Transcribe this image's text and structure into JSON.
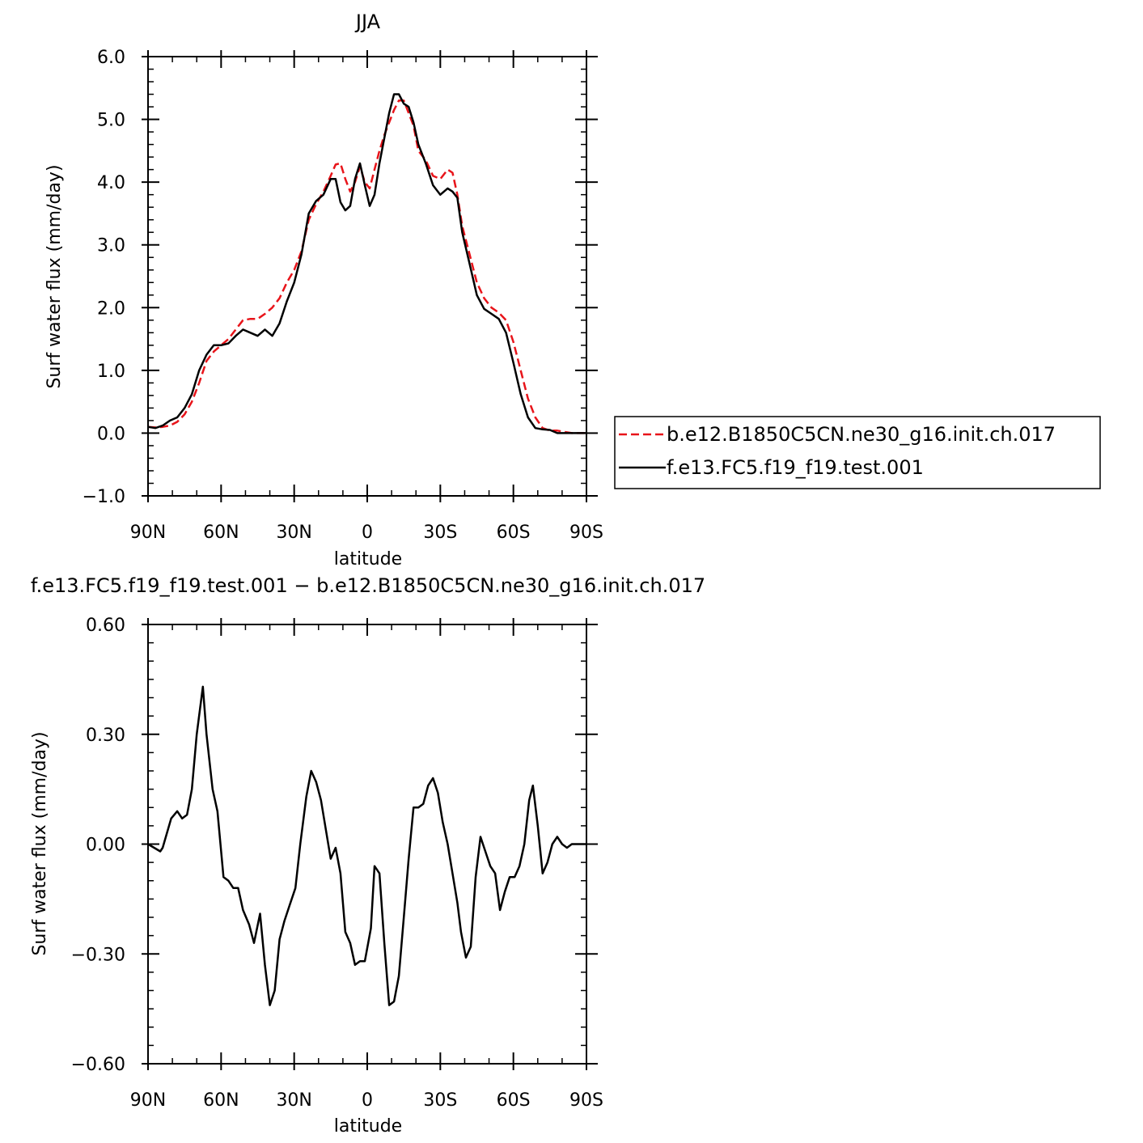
{
  "chart_data": [
    {
      "type": "line",
      "title": "JJA",
      "xlabel": "latitude",
      "ylabel": "Surf water flux (mm/day)",
      "xlim": [
        90,
        -90
      ],
      "ylim": [
        -1.0,
        6.0
      ],
      "x_ticks": [
        90,
        60,
        30,
        0,
        -30,
        -60,
        -90
      ],
      "x_tick_labels": [
        "90N",
        "60N",
        "30N",
        "0",
        "30S",
        "60S",
        "90S"
      ],
      "y_ticks": [
        -1.0,
        0.0,
        1.0,
        2.0,
        3.0,
        4.0,
        5.0,
        6.0
      ],
      "y_tick_labels": [
        "−1.0",
        "0.0",
        "1.0",
        "2.0",
        "3.0",
        "4.0",
        "5.0",
        "6.0"
      ],
      "legend_position": "right",
      "series": [
        {
          "name": "b.e12.B1850C5CN.ne30_g16.init.ch.017",
          "color": "#e8141a",
          "dash": "dashed",
          "x": [
            90,
            87,
            84,
            81,
            78,
            75,
            72,
            69,
            66,
            63,
            60,
            57,
            54,
            51,
            48,
            45,
            42,
            39,
            36,
            33,
            30,
            27,
            24,
            21,
            18,
            15,
            13,
            11,
            9,
            7,
            5,
            3,
            1,
            -1,
            -3,
            -5,
            -7,
            -9,
            -11,
            -13,
            -15,
            -17,
            -19,
            -21,
            -24,
            -27,
            -30,
            -33,
            -35,
            -37,
            -39,
            -42,
            -45,
            -48,
            -51,
            -54,
            -57,
            -60,
            -63,
            -66,
            -69,
            -72,
            -75,
            -78,
            -81,
            -84,
            -87,
            -90
          ],
          "values": [
            0.1,
            0.09,
            0.1,
            0.12,
            0.18,
            0.3,
            0.5,
            0.8,
            1.15,
            1.3,
            1.4,
            1.5,
            1.65,
            1.8,
            1.82,
            1.82,
            1.9,
            2.0,
            2.15,
            2.4,
            2.6,
            2.9,
            3.4,
            3.65,
            3.85,
            4.1,
            4.28,
            4.3,
            4.05,
            3.85,
            4.0,
            4.25,
            4.0,
            3.9,
            4.2,
            4.5,
            4.75,
            4.95,
            5.15,
            5.3,
            5.3,
            5.1,
            4.9,
            4.5,
            4.35,
            4.1,
            4.05,
            4.2,
            4.15,
            3.8,
            3.3,
            2.85,
            2.4,
            2.15,
            2.0,
            1.92,
            1.8,
            1.45,
            1.0,
            0.55,
            0.25,
            0.08,
            0.04,
            0.04,
            0.02,
            0.0,
            0.0,
            0.0
          ]
        },
        {
          "name": "f.e13.FC5.f19_f19.test.001",
          "color": "#000000",
          "dash": "solid",
          "x": [
            90,
            87,
            84,
            81,
            78,
            75,
            72,
            69,
            66,
            63,
            60,
            57,
            54,
            51,
            48,
            45,
            42,
            39,
            36,
            33,
            30,
            27,
            24,
            21,
            18,
            15,
            13,
            11,
            9,
            7,
            5,
            3,
            1,
            -1,
            -3,
            -5,
            -7,
            -9,
            -11,
            -13,
            -15,
            -17,
            -19,
            -21,
            -24,
            -27,
            -30,
            -33,
            -35,
            -37,
            -39,
            -42,
            -45,
            -48,
            -51,
            -54,
            -57,
            -60,
            -63,
            -66,
            -69,
            -72,
            -75,
            -78,
            -81,
            -84,
            -87,
            -90
          ],
          "values": [
            0.1,
            0.08,
            0.12,
            0.2,
            0.25,
            0.4,
            0.62,
            1.0,
            1.25,
            1.4,
            1.4,
            1.43,
            1.55,
            1.65,
            1.6,
            1.55,
            1.65,
            1.55,
            1.75,
            2.1,
            2.4,
            2.85,
            3.5,
            3.7,
            3.8,
            4.05,
            4.05,
            3.68,
            3.55,
            3.62,
            4.05,
            4.3,
            3.95,
            3.62,
            3.8,
            4.3,
            4.7,
            5.1,
            5.4,
            5.4,
            5.25,
            5.2,
            4.95,
            4.6,
            4.3,
            3.95,
            3.8,
            3.9,
            3.85,
            3.75,
            3.2,
            2.7,
            2.2,
            1.98,
            1.9,
            1.82,
            1.6,
            1.12,
            0.62,
            0.25,
            0.08,
            0.06,
            0.05,
            0.0,
            0.0,
            0.0,
            0.0,
            0.0
          ]
        }
      ]
    },
    {
      "type": "line",
      "title": "f.e13.FC5.f19_f19.test.001 − b.e12.B1850C5CN.ne30_g16.init.ch.017",
      "xlabel": "latitude",
      "ylabel": "Surf water flux (mm/day)",
      "xlim": [
        90,
        -90
      ],
      "ylim": [
        -0.6,
        0.6
      ],
      "x_ticks": [
        90,
        60,
        30,
        0,
        -30,
        -60,
        -90
      ],
      "x_tick_labels": [
        "90N",
        "60N",
        "30N",
        "0",
        "30S",
        "60S",
        "90S"
      ],
      "y_ticks": [
        -0.6,
        -0.3,
        0.0,
        0.3,
        0.6
      ],
      "y_tick_labels": [
        "−0.60",
        "−0.30",
        "0.00",
        "0.30",
        "0.60"
      ],
      "series": [
        {
          "color": "#000000",
          "dash": "solid",
          "x": [
            90,
            87.5,
            85,
            84,
            80.5,
            78,
            76,
            74,
            72,
            70,
            67.5,
            66,
            63.5,
            61.5,
            59,
            57,
            55,
            53,
            51,
            48.5,
            46.5,
            44,
            42,
            40,
            38,
            36,
            34,
            32,
            29.5,
            27.5,
            25,
            23,
            21,
            19,
            17,
            15,
            13,
            11,
            9,
            7,
            5,
            3,
            1,
            -1.5,
            -3,
            -5,
            -7,
            -9,
            -11,
            -13,
            -15,
            -17,
            -19,
            -21,
            -23,
            -25,
            -27,
            -29,
            -31,
            -33,
            -35,
            -37,
            -38.5,
            -40.5,
            -42.5,
            -44.5,
            -46.5,
            -48.5,
            -50.5,
            -52.5,
            -54.5,
            -56.5,
            -58.5,
            -60.5,
            -62.5,
            -64.5,
            -66.5,
            -68,
            -70,
            -72,
            -74,
            -76,
            -78,
            -80,
            -82,
            -84,
            -87,
            -90
          ],
          "values": [
            0.0,
            -0.01,
            -0.02,
            -0.01,
            0.07,
            0.09,
            0.07,
            0.08,
            0.15,
            0.3,
            0.43,
            0.3,
            0.15,
            0.09,
            -0.09,
            -0.1,
            -0.12,
            -0.12,
            -0.18,
            -0.22,
            -0.27,
            -0.19,
            -0.33,
            -0.44,
            -0.4,
            -0.26,
            -0.21,
            -0.17,
            -0.12,
            0.0,
            0.13,
            0.2,
            0.17,
            0.12,
            0.04,
            -0.04,
            -0.01,
            -0.08,
            -0.24,
            -0.27,
            -0.33,
            -0.32,
            -0.32,
            -0.23,
            -0.06,
            -0.08,
            -0.27,
            -0.44,
            -0.43,
            -0.36,
            -0.2,
            -0.04,
            0.1,
            0.1,
            0.11,
            0.16,
            0.18,
            0.14,
            0.06,
            0.0,
            -0.08,
            -0.16,
            -0.24,
            -0.31,
            -0.28,
            -0.09,
            0.02,
            -0.02,
            -0.06,
            -0.08,
            -0.18,
            -0.13,
            -0.09,
            -0.09,
            -0.06,
            0.0,
            0.12,
            0.16,
            0.05,
            -0.08,
            -0.05,
            0.0,
            0.02,
            0.0,
            -0.01,
            0.0,
            0.0,
            0.0
          ]
        }
      ]
    }
  ]
}
